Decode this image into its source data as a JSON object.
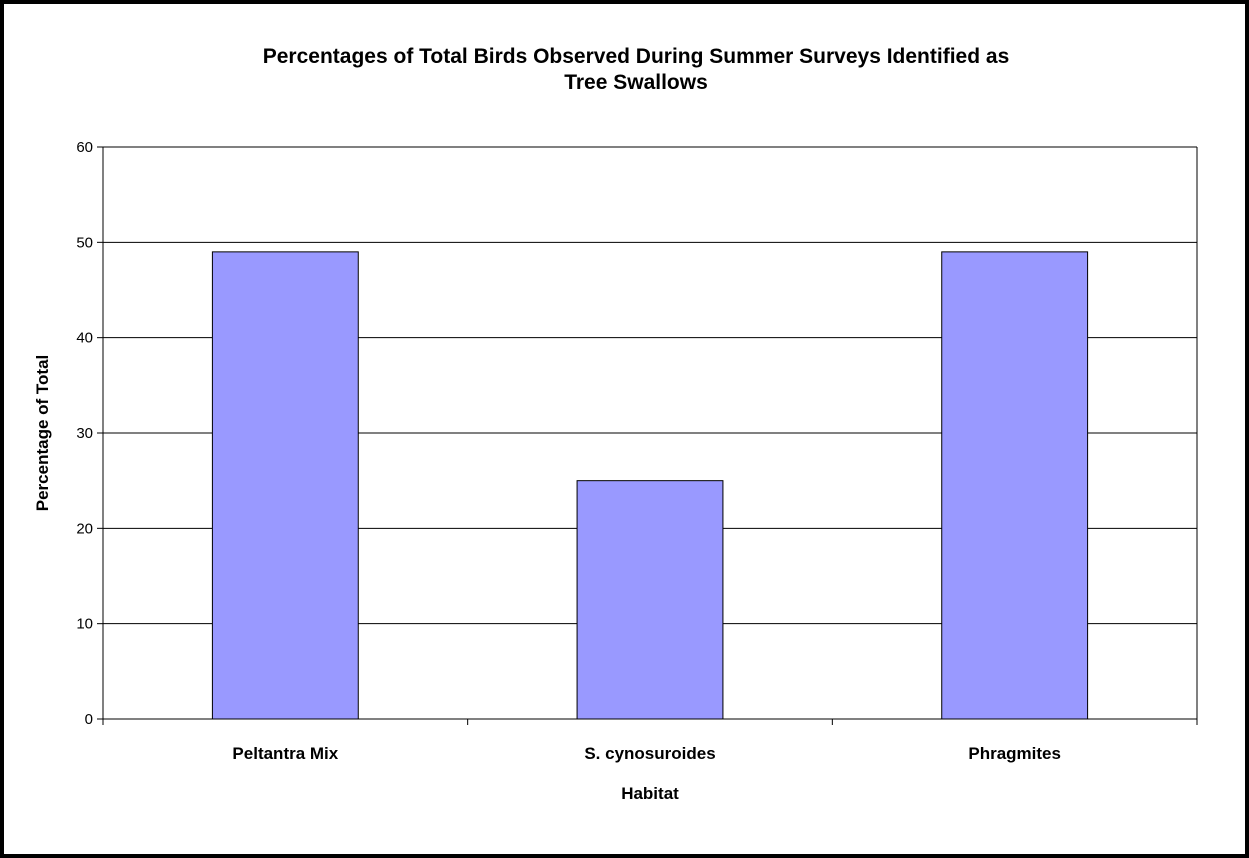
{
  "chart_data": {
    "type": "bar",
    "title": "Percentages of Total Birds Observed During Summer Surveys Identified as\nTree Swallows",
    "categories": [
      "Peltantra Mix",
      "S. cynosuroides",
      "Phragmites"
    ],
    "series": [
      {
        "values": [
          49,
          25,
          49
        ],
        "color": "#9999ff"
      }
    ],
    "xlabel": "Habitat",
    "ylabel": "Percentage of Total",
    "ylim": [
      0,
      60
    ],
    "yticks": [
      0,
      10,
      20,
      30,
      40,
      50,
      60
    ],
    "grid": true,
    "legend": "none"
  }
}
